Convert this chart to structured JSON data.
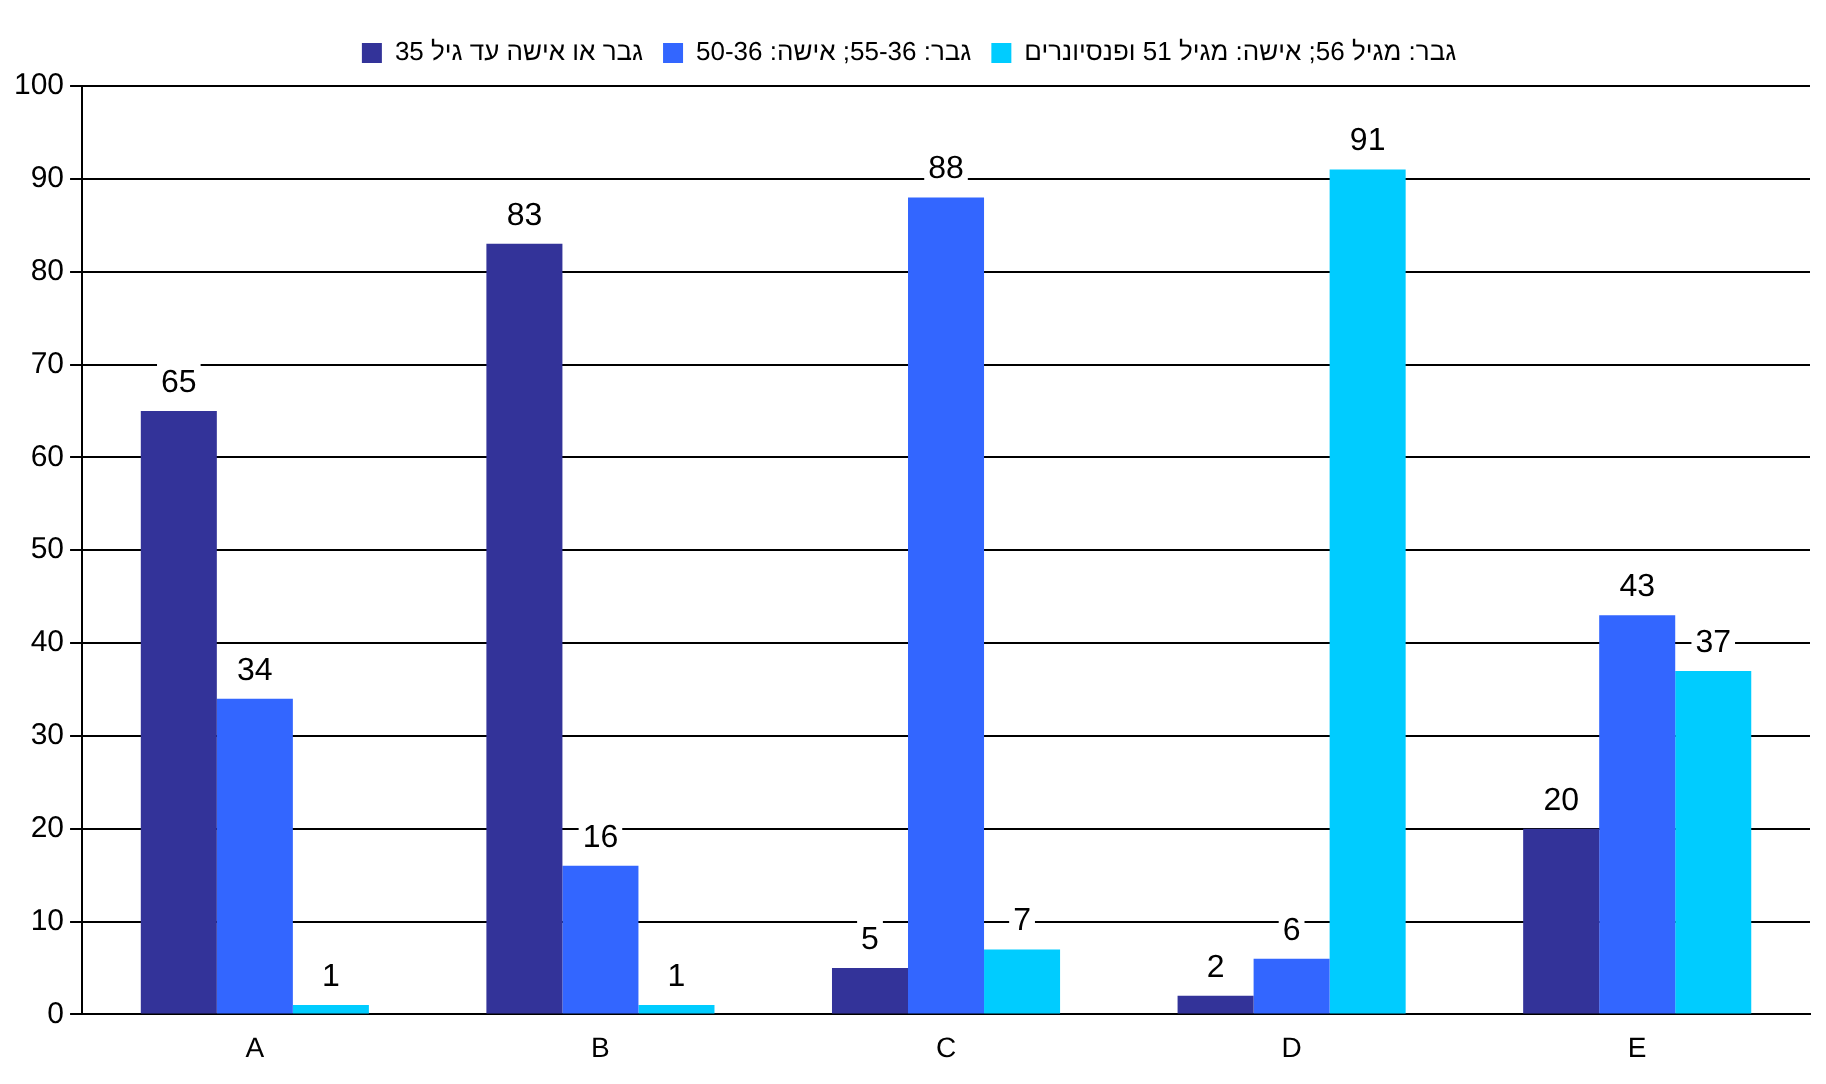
{
  "chart_data": {
    "type": "bar",
    "categories": [
      "A",
      "B",
      "C",
      "D",
      "E"
    ],
    "series": [
      {
        "name": "גבר או אישה עד גיל 35",
        "color": "#333399",
        "values": [
          65,
          83,
          5,
          2,
          20
        ]
      },
      {
        "name": "גבר: 55-36; אישה: 50-36",
        "color": "#3366ff",
        "values": [
          34,
          16,
          88,
          6,
          43
        ]
      },
      {
        "name": "גבר: מגיל 56; אישה: מגיל 51 ופנסיונרים",
        "color": "#00ccff",
        "values": [
          1,
          1,
          7,
          91,
          37
        ]
      }
    ],
    "ylim": [
      0,
      100
    ],
    "yticks": [
      0,
      10,
      20,
      30,
      40,
      50,
      60,
      70,
      80,
      90,
      100
    ],
    "grid": "y",
    "legend": "top",
    "data_labels": true
  }
}
